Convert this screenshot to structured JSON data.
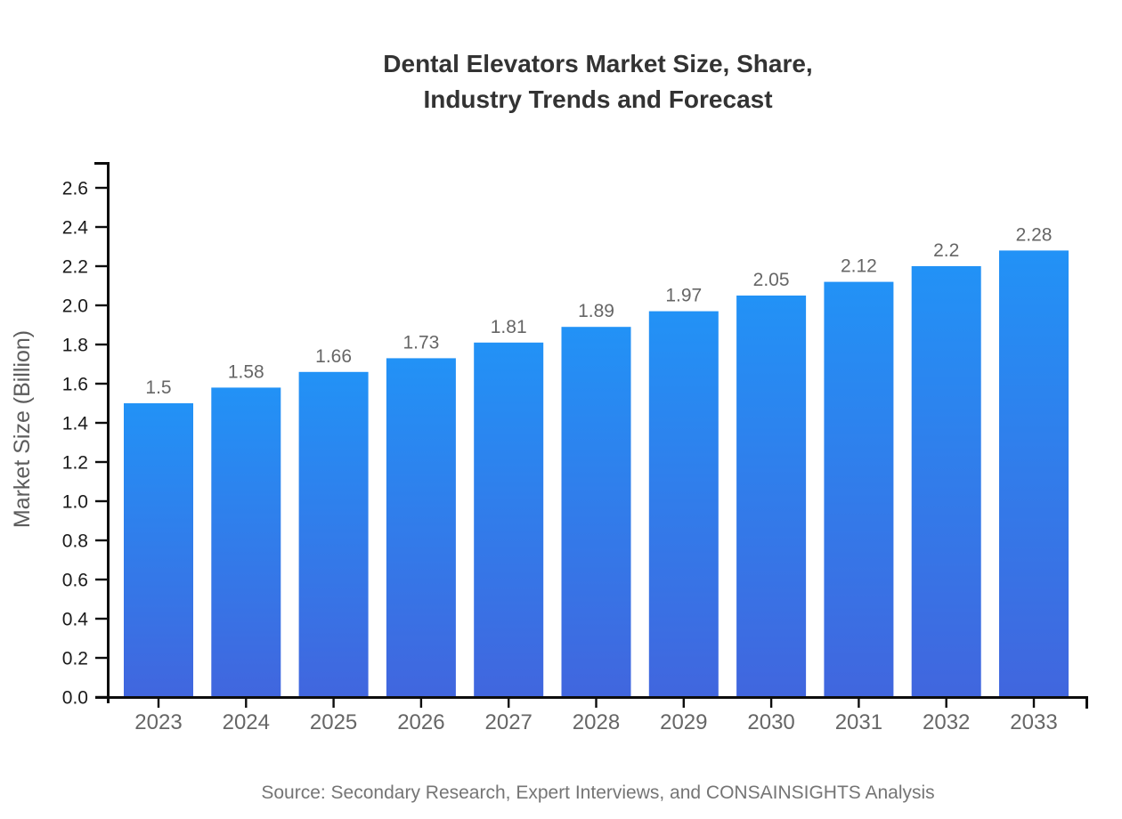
{
  "chart_data": {
    "type": "bar",
    "title": "Dental Elevators Market Size, Share,\nIndustry Trends and Forecast",
    "categories": [
      "2023",
      "2024",
      "2025",
      "2026",
      "2027",
      "2028",
      "2029",
      "2030",
      "2031",
      "2032",
      "2033"
    ],
    "values": [
      1.5,
      1.58,
      1.66,
      1.73,
      1.81,
      1.89,
      1.97,
      2.05,
      2.12,
      2.2,
      2.28
    ],
    "xlabel": "",
    "ylabel": "Market Size (Billion)",
    "ylim": [
      0,
      2.6
    ],
    "ytick_step": 0.2,
    "grid": false,
    "legend": null,
    "value_labels_shown": true,
    "source_note": "Source: Secondary Research, Expert Interviews, and CONSAINSIGHTS Analysis",
    "colors": {
      "bar_gradient_top": "#2292F6",
      "bar_gradient_bottom": "#4166DE",
      "axis": "#0d0d0d",
      "title_text": "#333333",
      "ytick_text": "#1a1a1a",
      "xtick_text": "#666666",
      "value_label_text": "#666666",
      "ylabel_text": "#5c5c5c",
      "source_text": "#757575"
    }
  }
}
